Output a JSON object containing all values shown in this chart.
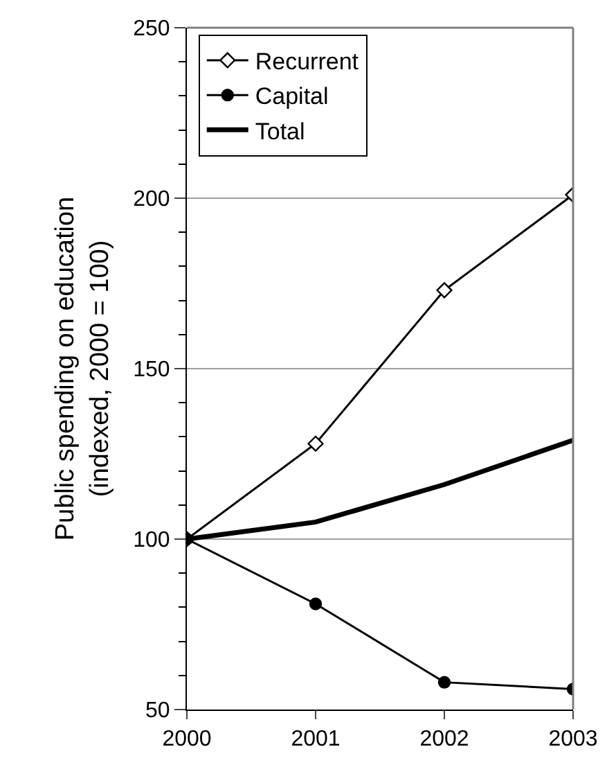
{
  "chart_data": {
    "type": "line",
    "ylabel": "Public spending on education\n(indexed, 2000 = 100)",
    "x": [
      2000,
      2001,
      2002,
      2003
    ],
    "xlim": [
      2000,
      2003
    ],
    "xticks": [
      2000,
      2001,
      2002,
      2003
    ],
    "ylim": [
      50,
      250
    ],
    "yticks": [
      50,
      100,
      150,
      200,
      250
    ],
    "grid": "y",
    "legend": "top left",
    "line_style": "solid",
    "series": [
      {
        "name": "Recurrent",
        "color": "#000000",
        "marker": "diamond",
        "values": [
          100,
          128,
          173,
          201
        ]
      },
      {
        "name": "Capital",
        "color": "#000000",
        "marker": "circle",
        "values": [
          100,
          81,
          58,
          56
        ]
      },
      {
        "name": "Total",
        "color": "#000000",
        "marker": "none",
        "values": [
          100,
          105,
          116,
          129
        ]
      }
    ]
  }
}
